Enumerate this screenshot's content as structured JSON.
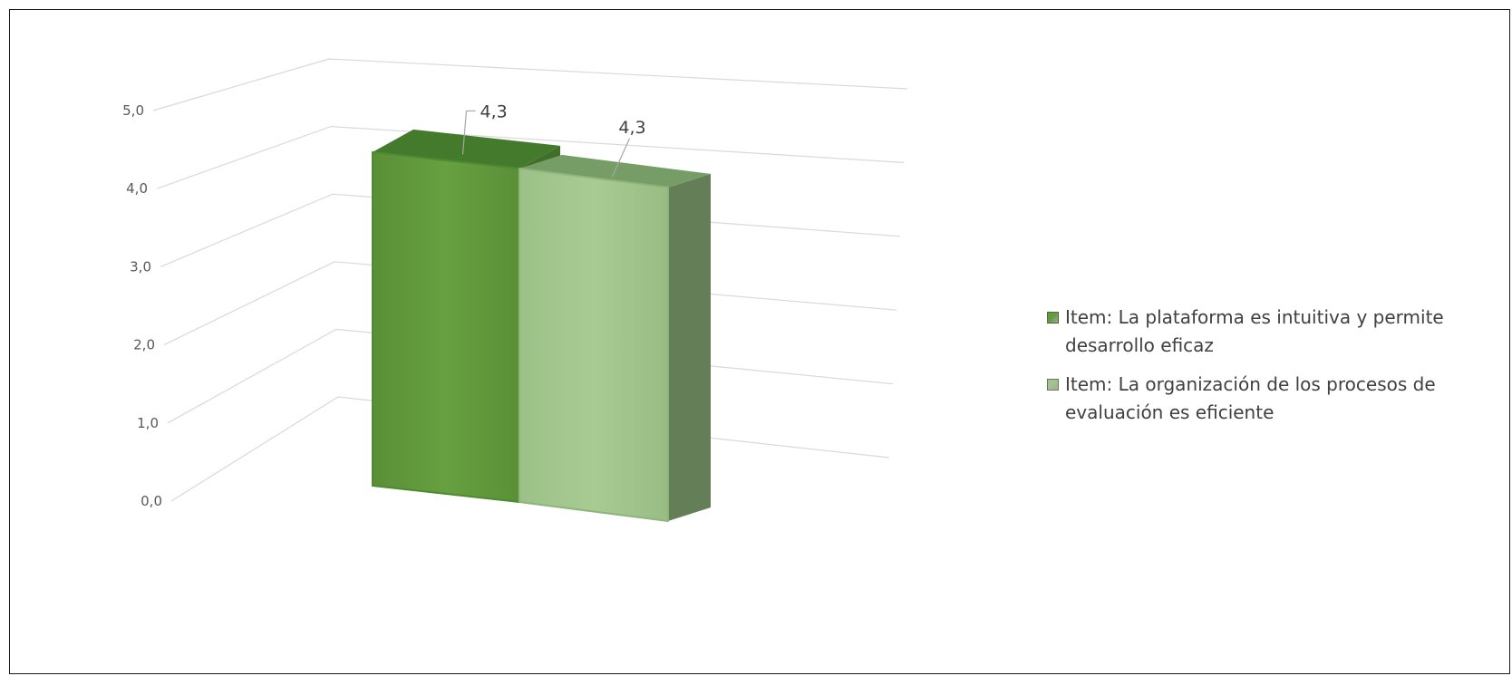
{
  "chart_data": {
    "type": "bar",
    "three_d": true,
    "categories": [
      ""
    ],
    "series": [
      {
        "name": "Item: La plataforma es intuitiva y permite desarrollo eficaz",
        "values": [
          4.3
        ],
        "color": "#629A3D"
      },
      {
        "name": "Item: La organización de los procesos de evaluación es eficiente",
        "values": [
          4.3
        ],
        "color": "#A2C48E"
      }
    ],
    "data_labels": [
      "4,3",
      "4,3"
    ],
    "y_ticks": [
      "0,0",
      "1,0",
      "2,0",
      "3,0",
      "4,0",
      "5,0"
    ],
    "ylim": [
      0,
      5
    ],
    "grid": true,
    "legend_position": "right"
  }
}
